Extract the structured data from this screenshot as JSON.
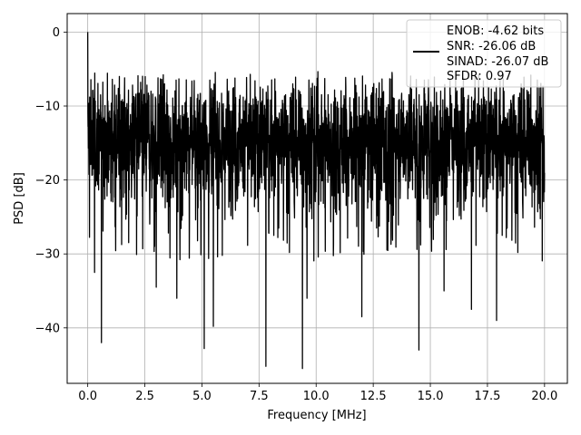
{
  "chart_data": {
    "type": "line",
    "title": "",
    "xlabel": "Frequency [MHz]",
    "ylabel": "PSD [dB]",
    "xlim": [
      -0.9,
      21.0
    ],
    "ylim": [
      -47.5,
      2.5
    ],
    "x_ticks": [
      0.0,
      2.5,
      5.0,
      7.5,
      10.0,
      12.5,
      15.0,
      17.5,
      20.0
    ],
    "x_tick_labels": [
      "0.0",
      "2.5",
      "5.0",
      "7.5",
      "10.0",
      "12.5",
      "15.0",
      "17.5",
      "20.0"
    ],
    "y_ticks": [
      0,
      -10,
      -20,
      -30,
      -40
    ],
    "y_tick_labels": [
      "0",
      "−10",
      "−20",
      "−30",
      "−40"
    ],
    "grid": true,
    "legend_position": "upper-right",
    "legend": {
      "lines": [
        "ENOB: -4.62 bits",
        "SNR: -26.06 dB",
        "SINAD: -26.07 dB",
        "SFDR: 0.97"
      ],
      "color": "#000000"
    },
    "series": [
      {
        "color": "#000000",
        "description_points": {
          "x_start": 0.0,
          "x_end": 20.0,
          "peak": {
            "x": 0.0,
            "y": 0.0
          },
          "upper_envelope_approx": -7.0,
          "lower_envelope_approx": -23.0,
          "notable_dips": [
            {
              "x": 0.6,
              "y": -42.0
            },
            {
              "x": 0.3,
              "y": -32.5
            },
            {
              "x": 3.0,
              "y": -34.5
            },
            {
              "x": 3.9,
              "y": -36.0
            },
            {
              "x": 5.1,
              "y": -42.8
            },
            {
              "x": 5.5,
              "y": -39.8
            },
            {
              "x": 7.8,
              "y": -45.2
            },
            {
              "x": 9.4,
              "y": -45.5
            },
            {
              "x": 9.6,
              "y": -36.0
            },
            {
              "x": 12.0,
              "y": -38.5
            },
            {
              "x": 14.5,
              "y": -43.0
            },
            {
              "x": 15.6,
              "y": -35.0
            },
            {
              "x": 16.8,
              "y": -37.5
            },
            {
              "x": 17.9,
              "y": -39.0
            }
          ]
        }
      }
    ]
  }
}
